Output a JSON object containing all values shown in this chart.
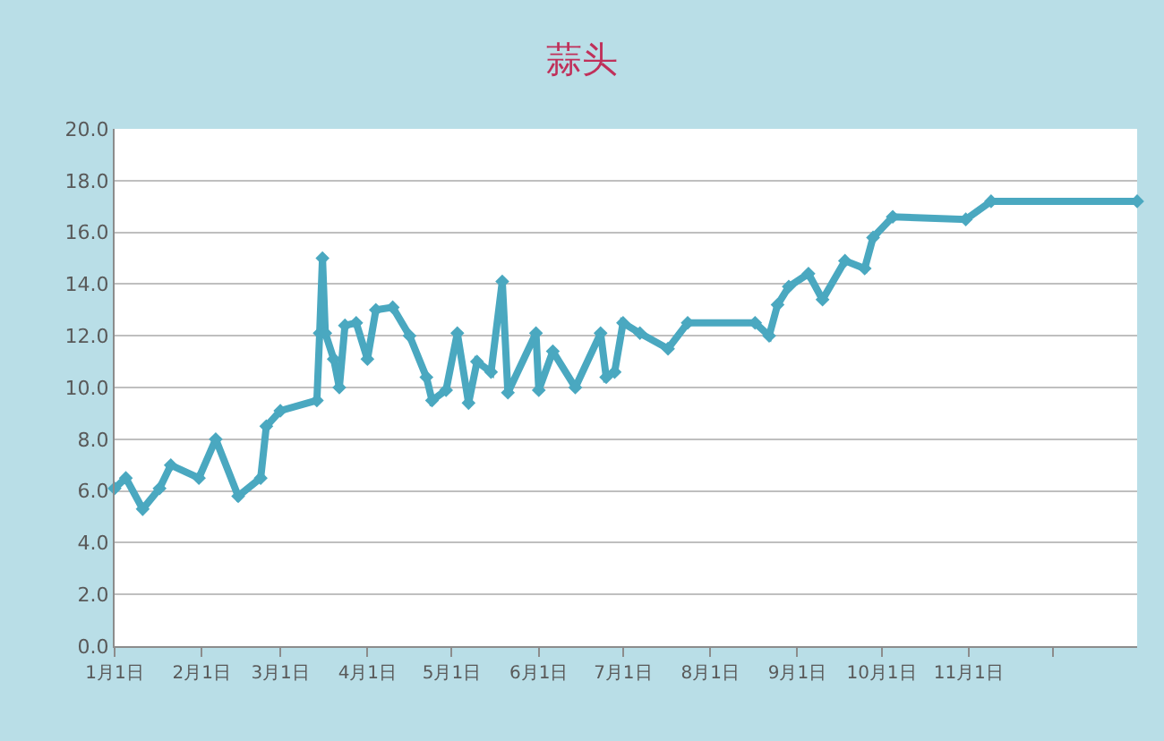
{
  "chart_data": {
    "type": "line",
    "title": "蒜头",
    "x": [
      "--01-01",
      "--01-05",
      "--01-11",
      "--01-17",
      "--01-21",
      "--01-31",
      "--02-06",
      "--02-14",
      "--02-22",
      "--02-24",
      "--03-01",
      "--03-14",
      "--03-15",
      "--03-16",
      "--03-17",
      "--03-20",
      "--03-22",
      "--03-24",
      "--03-28",
      "--04-01",
      "--04-04",
      "--04-10",
      "--04-16",
      "--04-22",
      "--04-24",
      "--04-29",
      "--05-03",
      "--05-07",
      "--05-10",
      "--05-15",
      "--05-19",
      "--05-21",
      "--05-31",
      "--06-01",
      "--06-06",
      "--06-14",
      "--06-23",
      "--06-25",
      "--06-28",
      "--07-01",
      "--07-07",
      "--07-17",
      "--07-24",
      "--08-17",
      "--08-22",
      "--08-25",
      "--08-29",
      "--09-05",
      "--09-10",
      "--09-18",
      "--09-25",
      "--09-28",
      "--10-05",
      "--10-31",
      "--11-09",
      "--12-31"
    ],
    "series": [
      {
        "color": "#4aa8c0",
        "values": [
          6.1,
          6.5,
          5.3,
          6.1,
          7.0,
          6.5,
          8.0,
          5.8,
          6.5,
          8.5,
          9.1,
          9.5,
          12.1,
          15.0,
          12.1,
          11.1,
          10.0,
          12.4,
          12.5,
          11.1,
          13.0,
          13.1,
          12.0,
          10.4,
          9.5,
          9.9,
          12.1,
          9.4,
          11.0,
          10.6,
          14.1,
          9.8,
          12.1,
          9.9,
          11.4,
          10.0,
          12.1,
          10.4,
          10.6,
          12.5,
          12.1,
          11.5,
          12.5,
          12.5,
          12.0,
          13.2,
          13.9,
          14.4,
          13.4,
          14.9,
          14.6,
          15.8,
          16.6,
          16.5,
          17.2,
          17.2
        ]
      }
    ],
    "xlim": [
      "--01-01",
      "--12-31"
    ],
    "xticks": [
      {
        "value": "--01-01",
        "label": "1月1日"
      },
      {
        "value": "--02-01",
        "label": "2月1日"
      },
      {
        "value": "--03-01",
        "label": "3月1日"
      },
      {
        "value": "--04-01",
        "label": "4月1日"
      },
      {
        "value": "--05-01",
        "label": "5月1日"
      },
      {
        "value": "--06-01",
        "label": "6月1日"
      },
      {
        "value": "--07-01",
        "label": "7月1日"
      },
      {
        "value": "--08-01",
        "label": "8月1日"
      },
      {
        "value": "--09-01",
        "label": "9月1日"
      },
      {
        "value": "--10-01",
        "label": "10月1日"
      },
      {
        "value": "--11-01",
        "label": "11月1日"
      },
      {
        "value": "--12-01",
        "label": null
      }
    ],
    "ylim": [
      0,
      20
    ],
    "yticks": [
      {
        "value": 0,
        "label": "0.0"
      },
      {
        "value": 2,
        "label": "2.0"
      },
      {
        "value": 4,
        "label": "4.0"
      },
      {
        "value": 6,
        "label": "6.0"
      },
      {
        "value": 8,
        "label": "8.0"
      },
      {
        "value": 10,
        "label": "10.0"
      },
      {
        "value": 12,
        "label": "12.0"
      },
      {
        "value": 14,
        "label": "14.0"
      },
      {
        "value": 16,
        "label": "16.0"
      },
      {
        "value": 18,
        "label": "18.0"
      },
      {
        "value": 20,
        "label": "20.0"
      }
    ],
    "grid": "y",
    "marker": "diamond",
    "line_style": "solid"
  }
}
